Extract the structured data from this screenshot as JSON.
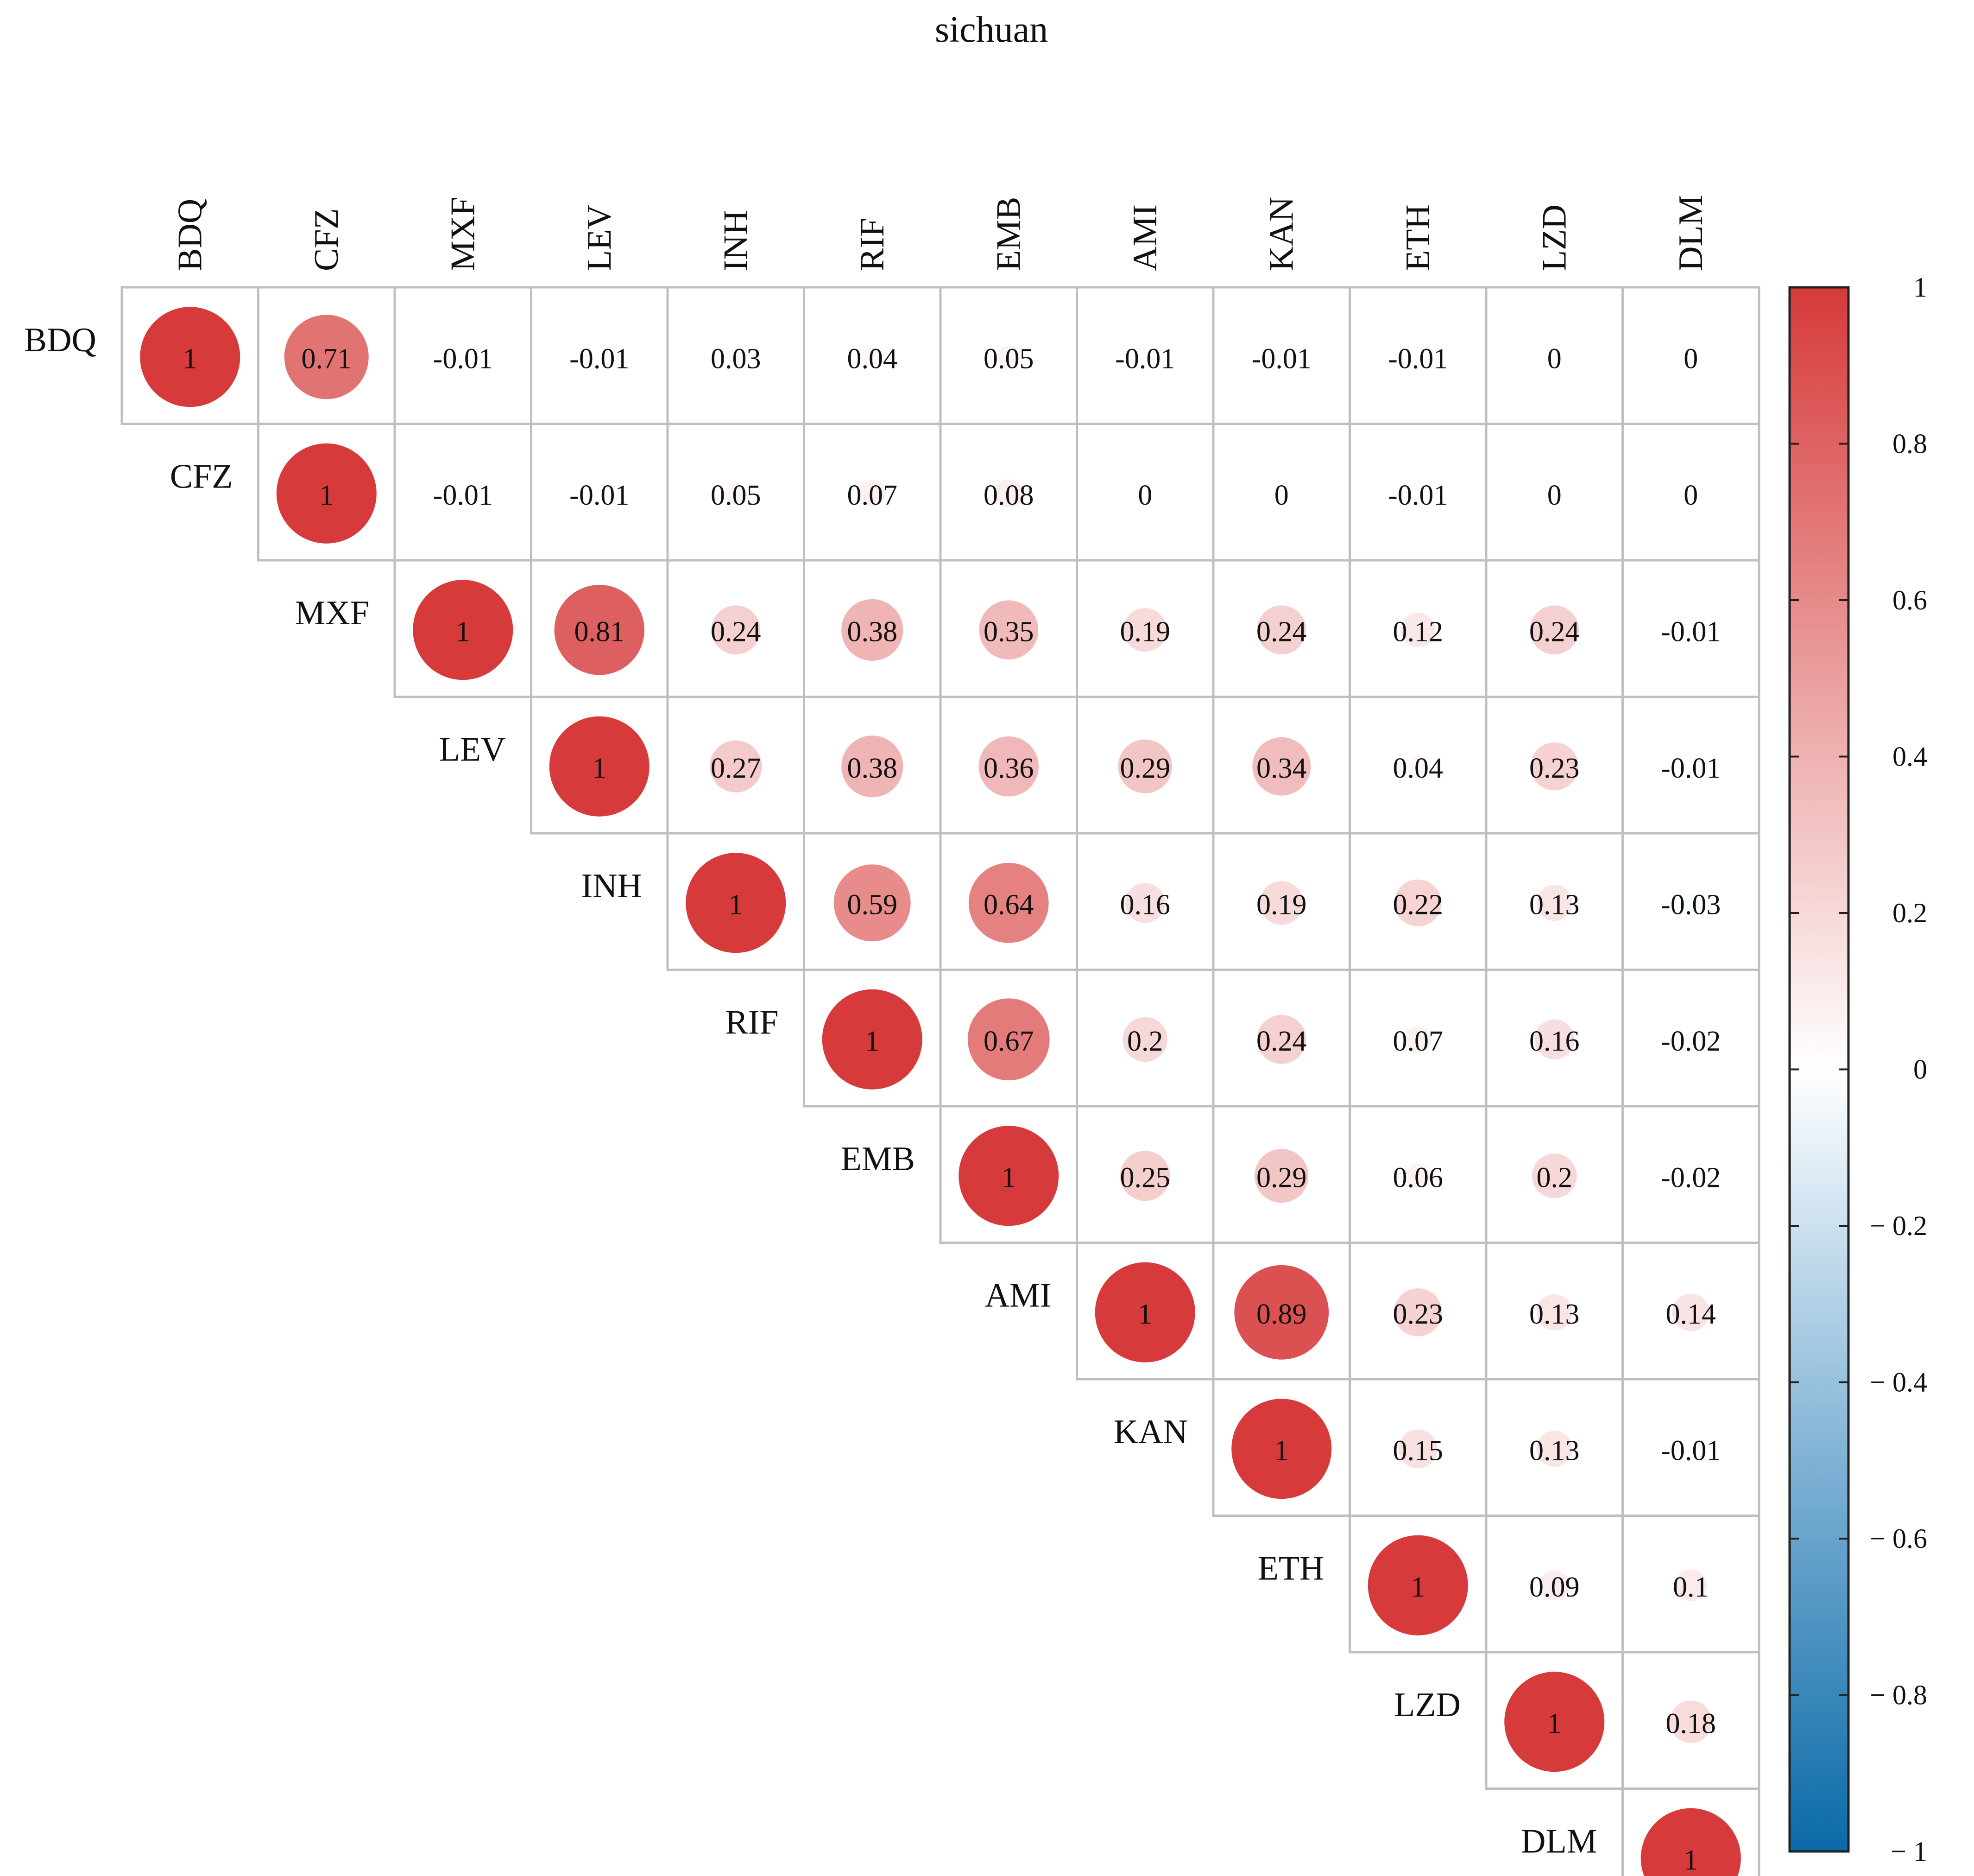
{
  "chart_data": {
    "type": "heatmap",
    "title": "sichuan",
    "variables": [
      "BDQ",
      "CFZ",
      "MXF",
      "LEV",
      "INH",
      "RIF",
      "EMB",
      "AMI",
      "KAN",
      "ETH",
      "LZD",
      "DLM"
    ],
    "matrix": [
      [
        1,
        0.71,
        -0.01,
        -0.01,
        0.03,
        0.04,
        0.05,
        -0.01,
        -0.01,
        -0.01,
        0,
        0
      ],
      [
        null,
        1,
        -0.01,
        -0.01,
        0.05,
        0.07,
        0.08,
        0,
        0,
        -0.01,
        0,
        0
      ],
      [
        null,
        null,
        1,
        0.81,
        0.24,
        0.38,
        0.35,
        0.19,
        0.24,
        0.12,
        0.24,
        -0.01
      ],
      [
        null,
        null,
        null,
        1,
        0.27,
        0.38,
        0.36,
        0.29,
        0.34,
        0.04,
        0.23,
        -0.01
      ],
      [
        null,
        null,
        null,
        null,
        1,
        0.59,
        0.64,
        0.16,
        0.19,
        0.22,
        0.13,
        -0.03
      ],
      [
        null,
        null,
        null,
        null,
        null,
        1,
        0.67,
        0.2,
        0.24,
        0.07,
        0.16,
        -0.02
      ],
      [
        null,
        null,
        null,
        null,
        null,
        null,
        1,
        0.25,
        0.29,
        0.06,
        0.2,
        -0.02
      ],
      [
        null,
        null,
        null,
        null,
        null,
        null,
        null,
        1,
        0.89,
        0.23,
        0.13,
        0.14
      ],
      [
        null,
        null,
        null,
        null,
        null,
        null,
        null,
        null,
        1,
        0.15,
        0.13,
        -0.01
      ],
      [
        null,
        null,
        null,
        null,
        null,
        null,
        null,
        null,
        null,
        1,
        0.09,
        0.1
      ],
      [
        null,
        null,
        null,
        null,
        null,
        null,
        null,
        null,
        null,
        null,
        1,
        0.18
      ],
      [
        null,
        null,
        null,
        null,
        null,
        null,
        null,
        null,
        null,
        null,
        null,
        1
      ]
    ],
    "legend": {
      "min": -1,
      "max": 1,
      "ticks": [
        {
          "value": 1,
          "label": "1"
        },
        {
          "value": 0.8,
          "label": "0.8"
        },
        {
          "value": 0.6,
          "label": "0.6"
        },
        {
          "value": 0.4,
          "label": "0.4"
        },
        {
          "value": 0.2,
          "label": "0.2"
        },
        {
          "value": 0,
          "label": "0"
        },
        {
          "value": -0.2,
          "label": "− 0.2"
        },
        {
          "value": -0.4,
          "label": "− 0.4"
        },
        {
          "value": -0.6,
          "label": "− 0.6"
        },
        {
          "value": -0.8,
          "label": "− 0.8"
        },
        {
          "value": -1,
          "label": "− 1"
        }
      ]
    },
    "colors": {
      "positive": "#d63a3a",
      "neutral": "#ffffff",
      "negative": "#1f77b4",
      "grid": "#bfbfbf"
    }
  }
}
